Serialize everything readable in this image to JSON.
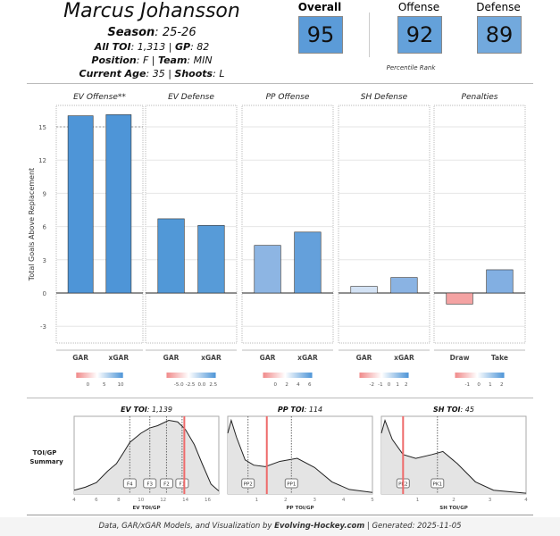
{
  "player": {
    "name": "Marcus Johansson",
    "season_label": "Season",
    "season": "25-26",
    "toi_label": "All TOI",
    "toi": "1,313",
    "gp_label": "GP",
    "gp": "82",
    "position_label": "Position",
    "position": "F",
    "team_label": "Team",
    "team": "MIN",
    "age_label": "Current Age",
    "age": "35",
    "shoots_label": "Shoots",
    "shoots": "L"
  },
  "ranks": {
    "overall_label": "Overall",
    "overall": "95",
    "offense_label": "Offense",
    "offense": "92",
    "defense_label": "Defense",
    "defense": "89",
    "caption": "Percentile Rank",
    "colors": {
      "overall": "#5b9bd8",
      "offense": "#64a1da",
      "defense": "#72a9dd"
    }
  },
  "chart_data": [
    {
      "type": "bar",
      "ylabel": "Total Goals Above Replacement",
      "ylim": [
        -5,
        17
      ],
      "yticks": [
        "-3",
        "0",
        "3",
        "6",
        "9",
        "12",
        "15"
      ],
      "grid": true,
      "panels": [
        {
          "title": "EV Offense**",
          "categories": [
            "GAR",
            "xGAR"
          ],
          "values": [
            16.0,
            16.1
          ],
          "colors": [
            "#4e95d7",
            "#4e95d7"
          ],
          "legend_ticks": [
            "0",
            "5",
            "10"
          ]
        },
        {
          "title": "EV Defense",
          "categories": [
            "GAR",
            "xGAR"
          ],
          "values": [
            6.7,
            6.1
          ],
          "colors": [
            "#5198d7",
            "#579bd8"
          ],
          "legend_ticks": [
            "-5.0",
            "-2.5",
            "0.0",
            "2.5"
          ]
        },
        {
          "title": "PP Offense",
          "categories": [
            "GAR",
            "xGAR"
          ],
          "values": [
            4.3,
            5.5
          ],
          "colors": [
            "#8db5e3",
            "#64a0db"
          ],
          "legend_ticks": [
            "0",
            "2",
            "4",
            "6"
          ]
        },
        {
          "title": "SH Defense",
          "categories": [
            "GAR",
            "xGAR"
          ],
          "values": [
            0.6,
            1.4
          ],
          "colors": [
            "#d3e2f4",
            "#8ab3e3"
          ],
          "legend_ticks": [
            "-2",
            "-1",
            "0",
            "1",
            "2"
          ]
        },
        {
          "title": "Penalties",
          "categories": [
            "Draw",
            "Take"
          ],
          "values": [
            -1.0,
            2.1
          ],
          "colors": [
            "#f4a3a3",
            "#82afe2"
          ],
          "legend_ticks": [
            "-1",
            "0",
            "1",
            "2"
          ]
        }
      ]
    },
    {
      "type": "area",
      "row_label_1": "TOI/GP",
      "row_label_2": "Summary",
      "panels": [
        {
          "title_label": "EV TOI",
          "title_value": "1,139",
          "xlabel": "EV TOI/GP",
          "xlim": [
            4,
            17
          ],
          "xticks": [
            "4",
            "6",
            "8",
            "10",
            "12",
            "14",
            "16"
          ],
          "player_value": 13.9,
          "markers": [
            {
              "label": "F4",
              "x": 9.0
            },
            {
              "label": "F3",
              "x": 10.8
            },
            {
              "label": "F2",
              "x": 12.3
            },
            {
              "label": "F1",
              "x": 13.7
            }
          ],
          "density": [
            [
              4,
              0.05
            ],
            [
              5,
              0.09
            ],
            [
              6,
              0.15
            ],
            [
              7,
              0.3
            ],
            [
              7.8,
              0.4
            ],
            [
              8.5,
              0.56
            ],
            [
              9,
              0.68
            ],
            [
              10,
              0.8
            ],
            [
              10.8,
              0.87
            ],
            [
              11.5,
              0.9
            ],
            [
              12.5,
              0.97
            ],
            [
              13.3,
              0.95
            ],
            [
              14,
              0.85
            ],
            [
              14.8,
              0.65
            ],
            [
              15.5,
              0.4
            ],
            [
              16.3,
              0.13
            ],
            [
              17,
              0.04
            ]
          ]
        },
        {
          "title_label": "PP TOI",
          "title_value": "114",
          "xlabel": "PP TOI/GP",
          "xlim": [
            0,
            5
          ],
          "xticks": [
            "1",
            "2",
            "3",
            "4",
            "5"
          ],
          "player_value": 1.35,
          "markers": [
            {
              "label": "PP2",
              "x": 0.7
            },
            {
              "label": "PP1",
              "x": 2.2
            }
          ],
          "density": [
            [
              0,
              0.8
            ],
            [
              0.12,
              0.97
            ],
            [
              0.3,
              0.75
            ],
            [
              0.6,
              0.45
            ],
            [
              0.9,
              0.38
            ],
            [
              1.3,
              0.36
            ],
            [
              1.8,
              0.43
            ],
            [
              2.4,
              0.47
            ],
            [
              3,
              0.35
            ],
            [
              3.6,
              0.16
            ],
            [
              4.2,
              0.06
            ],
            [
              5,
              0.02
            ]
          ]
        },
        {
          "title_label": "SH TOI",
          "title_value": "45",
          "xlabel": "SH TOI/GP",
          "xlim": [
            0,
            4
          ],
          "xticks": [
            "1",
            "2",
            "3",
            "4"
          ],
          "player_value": 0.6,
          "markers": [
            {
              "label": "PK2",
              "x": 0.6
            },
            {
              "label": "PK1",
              "x": 1.55
            }
          ],
          "density": [
            [
              0,
              0.8
            ],
            [
              0.1,
              0.97
            ],
            [
              0.3,
              0.72
            ],
            [
              0.6,
              0.52
            ],
            [
              0.95,
              0.47
            ],
            [
              1.4,
              0.52
            ],
            [
              1.7,
              0.56
            ],
            [
              2.1,
              0.4
            ],
            [
              2.6,
              0.16
            ],
            [
              3.1,
              0.05
            ],
            [
              4,
              0.01
            ]
          ]
        }
      ]
    }
  ],
  "footer": {
    "text": "Data, GAR/xGAR Models, and Visualization by ",
    "brand": "Evolving-Hockey.com",
    "generated": " | Generated: 2025-11-05"
  }
}
